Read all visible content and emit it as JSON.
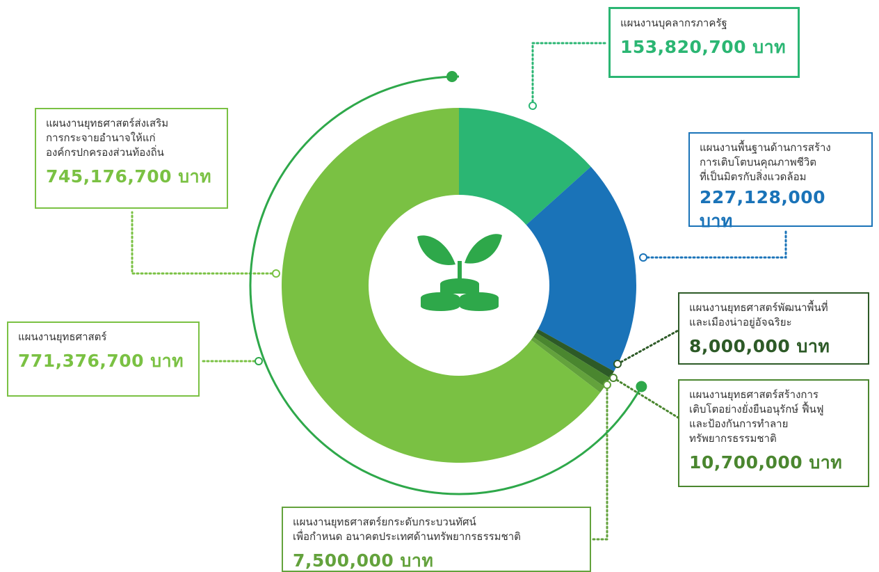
{
  "chart_data": {
    "type": "pie",
    "categories": [
      "แผนงานบุคลากรภาครัฐ",
      "แผนงานพื้นฐานด้านการสร้าง\nการเติบโตบนคุณภาพชีวิต\nที่เป็นมิตรกับสิ่งแวดล้อม",
      "แผนงานยุทธศาสตร์พัฒนาพื้นที่\nและเมืองน่าอยู่อัจฉริยะ",
      "แผนงานยุทธศาสตร์สร้างการ\nเติบโตอย่างยั่งยืนอนุรักษ์ ฟื้นฟู\nและป้องกันการทำลาย\nทรัพยากรธรรมชาติ",
      "แผนงานยุทธศาสตร์ยกระดับกระบวนทัศน์\nเพื่อกำหนด อนาคตประเทศด้านทรัพยากรธรรมชาติ",
      "แผนงานยุทธศาสตร์ส่งเสริม\nการกระจายอำนาจให้แก่\nองค์กรปกครองส่วนท้องถิ่น"
    ],
    "values": [
      153820700,
      227128000,
      8000000,
      10700000,
      7500000,
      745176700
    ],
    "value_labels": [
      "153,820,700 บาท",
      "227,128,000 บาท",
      "8,000,000 บาท",
      "10,700,000 บาท",
      "7,500,000 บาท",
      "745,176,700 บาท"
    ],
    "colors": [
      "#2bb673",
      "#1a73b8",
      "#2d5a27",
      "#4a862f",
      "#63a23c",
      "#7ac143"
    ],
    "annotations": [
      {
        "text": "แผนงานยุทธศาสตร์",
        "value": 771376700,
        "value_label": "771,376,700 บาท",
        "color": "#2ea84a"
      }
    ]
  }
}
